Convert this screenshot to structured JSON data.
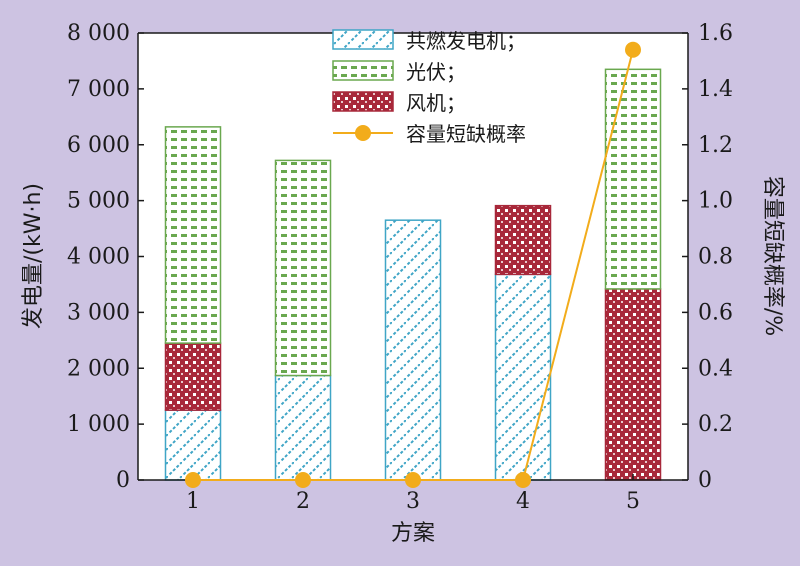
{
  "chart_data": {
    "type": "bar",
    "stacked": true,
    "categories": [
      "1",
      "2",
      "3",
      "4",
      "5"
    ],
    "xlabel": "方案",
    "ylabel_left": "发电量/(kW·h)",
    "ylabel_right": "容量短缺概率/%",
    "ylim_left": [
      0,
      8000
    ],
    "ylim_right": [
      0,
      1.6
    ],
    "yticks_left": [
      "0",
      "1 000",
      "2 000",
      "3 000",
      "4 000",
      "5 000",
      "6 000",
      "7 000",
      "8 000"
    ],
    "yticks_right": [
      "0",
      "0.2",
      "0.4",
      "0.6",
      "0.8",
      "1.0",
      "1.2",
      "1.4",
      "1.6"
    ],
    "series": [
      {
        "name": "共燃发电机；",
        "axis": "left",
        "kind": "bar",
        "pattern": "diagonal",
        "color": "#3fa5c6",
        "values": [
          1250,
          1870,
          4650,
          3680,
          0
        ]
      },
      {
        "name": "风机；",
        "axis": "left",
        "kind": "bar",
        "pattern": "checker",
        "color": "#a8283a",
        "values": [
          1200,
          0,
          0,
          1230,
          3420
        ]
      },
      {
        "name": "光伏；",
        "axis": "left",
        "kind": "bar",
        "pattern": "dash",
        "color": "#6aa84f",
        "values": [
          3870,
          3850,
          0,
          0,
          3930
        ]
      },
      {
        "name": "容量短缺概率",
        "axis": "right",
        "kind": "line",
        "color": "#f2ac1b",
        "values": [
          0,
          0,
          0,
          0,
          1.54
        ]
      }
    ],
    "legend_order": [
      "共燃发电机；",
      "光伏；",
      "风机；",
      "容量短缺概率"
    ],
    "legend_position": "top-center",
    "grid": false
  }
}
